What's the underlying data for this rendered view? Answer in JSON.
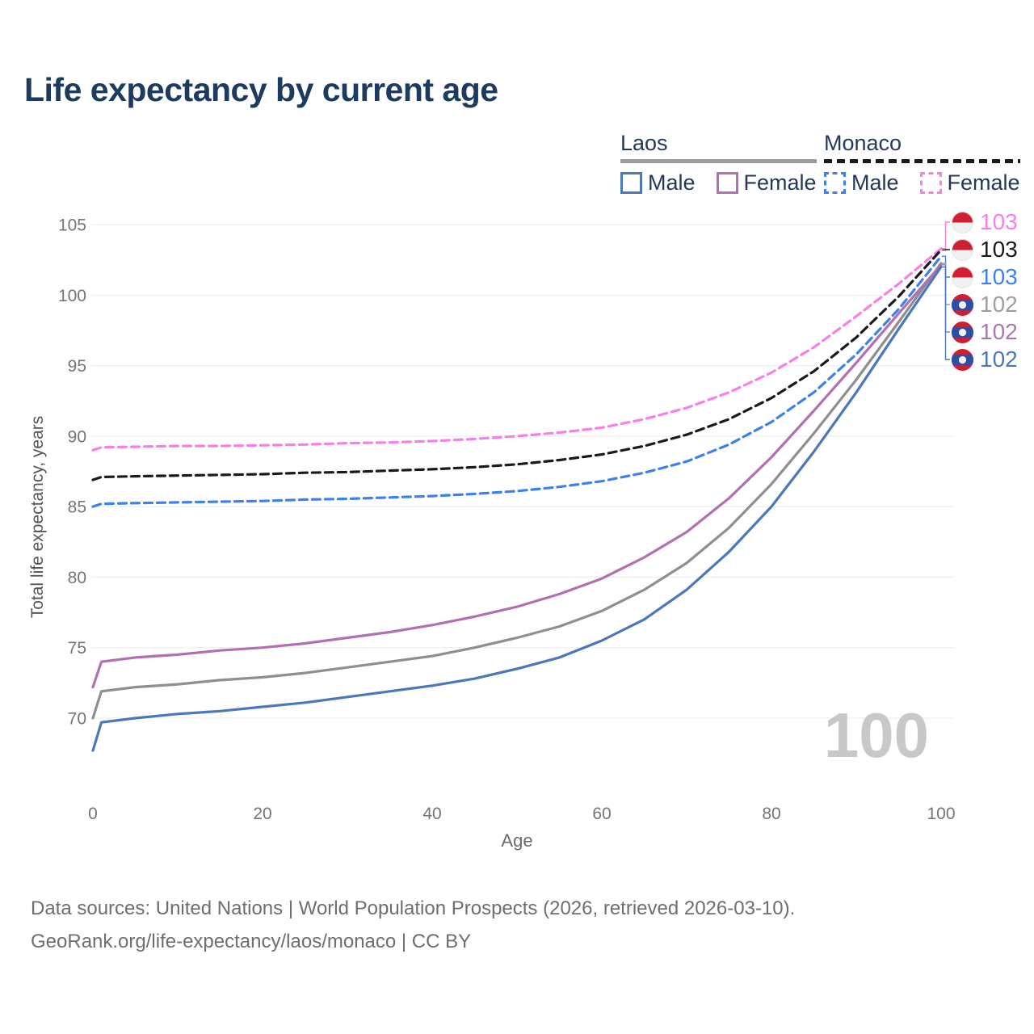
{
  "title": "Life expectancy by current age",
  "watermark": "100",
  "footer": {
    "line1": "Data sources: United Nations | World Population Prospects (2026, retrieved 2026-03-10).",
    "line2": "GeoRank.org/life-expectancy/laos/monaco | CC BY"
  },
  "legend": {
    "groups": [
      {
        "label": "Laos",
        "underline": "solid",
        "underline_color": "#9b9b9b",
        "items": [
          {
            "label": "Male",
            "color": "#4a78bb",
            "dashed": false
          },
          {
            "label": "Female",
            "color": "#b26fb2",
            "dashed": false
          }
        ]
      },
      {
        "label": "Monaco",
        "underline": "dashed",
        "underline_color": "#1a1a1a",
        "items": [
          {
            "label": "Male",
            "color": "#3b82ee",
            "dashed": true
          },
          {
            "label": "Female",
            "color": "#f87fe7",
            "dashed": true
          }
        ]
      }
    ]
  },
  "chart_data": {
    "type": "line",
    "title": "Life expectancy by current age",
    "xlabel": "Age",
    "ylabel": "Total life expectancy, years",
    "xticks": [
      0,
      20,
      40,
      60,
      80,
      100
    ],
    "yticks": [
      70,
      75,
      80,
      85,
      90,
      95,
      100,
      105
    ],
    "xlim": [
      0,
      100
    ],
    "ylim": [
      67,
      105.5
    ],
    "grid": "horizontal",
    "x": [
      0,
      1,
      5,
      10,
      15,
      20,
      25,
      30,
      35,
      40,
      45,
      50,
      55,
      60,
      65,
      70,
      75,
      80,
      85,
      90,
      95,
      100
    ],
    "series": [
      {
        "name": "Monaco Female",
        "country": "Monaco",
        "sex": "Female",
        "color": "#f87fe7",
        "label_color": "#f87fe7",
        "dash": true,
        "end_label": "103",
        "flag": "monaco",
        "values": [
          89.0,
          89.2,
          89.25,
          89.3,
          89.3,
          89.35,
          89.4,
          89.5,
          89.55,
          89.65,
          89.8,
          90.0,
          90.25,
          90.6,
          91.2,
          92.0,
          93.1,
          94.5,
          96.3,
          98.5,
          100.8,
          103.3
        ]
      },
      {
        "name": "Monaco",
        "country": "Monaco",
        "sex": "All",
        "color": "#1a1a1a",
        "label_color": "#1a1a1a",
        "dash": true,
        "end_label": "103",
        "flag": "monaco",
        "values": [
          86.9,
          87.1,
          87.15,
          87.2,
          87.25,
          87.3,
          87.4,
          87.45,
          87.55,
          87.65,
          87.8,
          88.0,
          88.3,
          88.7,
          89.3,
          90.1,
          91.2,
          92.7,
          94.6,
          97.0,
          99.9,
          103.2
        ]
      },
      {
        "name": "Monaco Male",
        "country": "Monaco",
        "sex": "Male",
        "color": "#3b82ee",
        "label_color": "#3b82ee",
        "dash": true,
        "end_label": "103",
        "flag": "monaco",
        "values": [
          85.0,
          85.2,
          85.25,
          85.3,
          85.35,
          85.4,
          85.5,
          85.55,
          85.65,
          85.75,
          85.9,
          86.1,
          86.4,
          86.8,
          87.4,
          88.2,
          89.4,
          91.0,
          93.1,
          95.8,
          99.0,
          102.75
        ]
      },
      {
        "name": "Laos",
        "country": "Laos",
        "sex": "All",
        "color": "#8f8f8f",
        "label_color": "#9e9e9e",
        "dash": false,
        "end_label": "102",
        "flag": "laos",
        "values": [
          70.0,
          71.9,
          72.2,
          72.4,
          72.7,
          72.9,
          73.2,
          73.6,
          74.0,
          74.4,
          75.0,
          75.7,
          76.5,
          77.6,
          79.1,
          81.0,
          83.5,
          86.6,
          90.2,
          94.0,
          98.1,
          102.25
        ]
      },
      {
        "name": "Laos Female",
        "country": "Laos",
        "sex": "Female",
        "color": "#b26fb2",
        "label_color": "#a879ad",
        "dash": false,
        "end_label": "102",
        "flag": "laos",
        "values": [
          72.2,
          74.0,
          74.3,
          74.5,
          74.8,
          75.0,
          75.3,
          75.7,
          76.1,
          76.6,
          77.2,
          77.9,
          78.8,
          79.9,
          81.4,
          83.2,
          85.6,
          88.5,
          91.8,
          95.2,
          98.7,
          102.15
        ]
      },
      {
        "name": "Laos Male",
        "country": "Laos",
        "sex": "Male",
        "color": "#4a78bb",
        "label_color": "#4a78bb",
        "dash": false,
        "end_label": "102",
        "flag": "laos",
        "values": [
          67.7,
          69.7,
          70.0,
          70.3,
          70.5,
          70.8,
          71.1,
          71.5,
          71.9,
          72.3,
          72.8,
          73.5,
          74.3,
          75.5,
          77.0,
          79.1,
          81.8,
          85.0,
          88.9,
          93.1,
          97.6,
          102.0
        ]
      }
    ]
  },
  "colors": {
    "title_text": "#1d3a5f",
    "legend_text": "#24395a",
    "tick_text": "#757575",
    "gridline": "#ebebeb",
    "watermark": "#c8c8c8",
    "footer_text": "#6e6e6e",
    "flag_red": "#d01f30",
    "flag_blue": "#2a51a5",
    "flag_white": "#f1f1f1"
  }
}
